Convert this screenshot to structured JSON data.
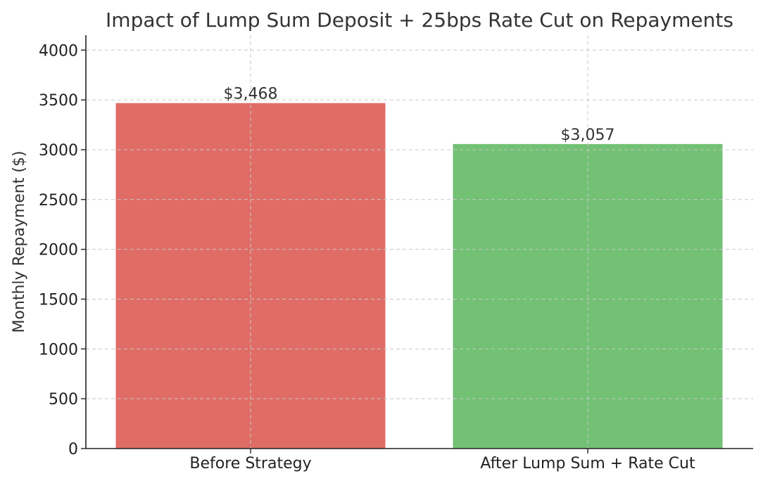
{
  "chart_data": {
    "type": "bar",
    "title": "Impact of Lump Sum Deposit + 25bps Rate Cut on Repayments",
    "xlabel": "",
    "ylabel": "Monthly Repayment ($)",
    "categories": [
      "Before Strategy",
      "After Lump Sum + Rate Cut"
    ],
    "values": [
      3468,
      3057
    ],
    "data_labels": [
      "$3,468",
      "$3,057"
    ],
    "colors": [
      "#e06c66",
      "#72c174"
    ],
    "ylim": [
      0,
      4150
    ],
    "yticks": [
      0,
      500,
      1000,
      1500,
      2000,
      2500,
      3000,
      3500,
      4000
    ],
    "grid": true,
    "legend": "none"
  }
}
